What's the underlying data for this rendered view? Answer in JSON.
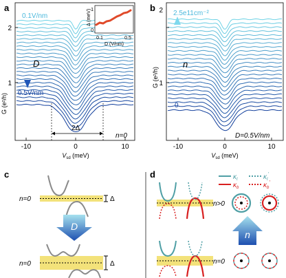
{
  "panels": {
    "a": {
      "letter": "a",
      "top_label": "0.1V/nm",
      "bottom_label": "0.5V/nm",
      "arrow_symbol": "D",
      "n_label": "n=0",
      "gap_label": "2Δ",
      "ylabel": "G (e²/h)",
      "xlabel_main": "V",
      "xlabel_sub": "sd",
      "xlabel_unit": " (meV)",
      "xticks": [
        "-10",
        "0",
        "10"
      ],
      "yticks": [
        "1",
        "2"
      ],
      "inset": {
        "ylabel": "Δ (meV)",
        "xlabel": "D (V/nm)",
        "xticks": [
          "0.1",
          "0.5"
        ],
        "yticks": [
          "0",
          "1"
        ]
      }
    },
    "b": {
      "letter": "b",
      "top_label": "2.5e11cm⁻²",
      "bottom_label": "0",
      "arrow_symbol": "n",
      "d_label": "D=0.5V/nm",
      "ylabel": "G (e²/h)",
      "xlabel_main": "V",
      "xlabel_sub": "sd",
      "xlabel_unit": " (meV)",
      "xticks": [
        "-10",
        "0",
        "10"
      ],
      "yticks": [
        "1",
        "2"
      ]
    },
    "c": {
      "letter": "c",
      "n_top": "n=0",
      "n_bottom": "n=0",
      "delta": "Δ",
      "arrow_symbol": "D"
    },
    "d": {
      "letter": "d",
      "n_top": "n>0",
      "n_bottom": "n=0",
      "arrow_symbol": "n",
      "legend": {
        "kt": "κ",
        "kt_sub": "t",
        "kb": "κ",
        "kb_sub": "b",
        "ktp": "κ",
        "ktp_sub": "t",
        "ktp_sup": "'",
        "kbp": "κ",
        "kbp_sub": "b",
        "kbp_sup": "'"
      }
    }
  },
  "colors": {
    "light": "#6fd3e6",
    "dark": "#123f9c",
    "red": "#d81f1f",
    "teal": "#4f9fa5",
    "yellow": "#f3e27a",
    "gray": "#8a8a8a"
  }
}
